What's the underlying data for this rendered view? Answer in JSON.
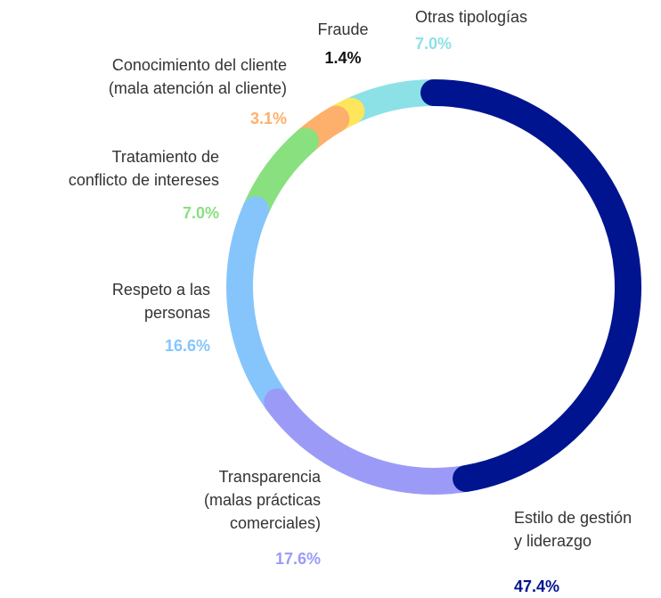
{
  "chart_data": {
    "type": "donut",
    "categories": [
      "Estilo de gestión\ny liderazgo",
      "Transparencia\n(malas prácticas\ncomerciales)",
      "Respeto a las\npersonas",
      "Tratamiento de\nconflicto de intereses",
      "Conocimiento del cliente\n(mala atención al cliente)",
      "Fraude",
      "Otras tipologías"
    ],
    "values": [
      47.4,
      17.6,
      16.6,
      7.0,
      3.1,
      1.4,
      7.0
    ],
    "value_labels": [
      "47.4%",
      "17.6%",
      "16.6%",
      "7.0%",
      "3.1%",
      "1.4%",
      "7.0%"
    ],
    "colors": [
      "#00148f",
      "#9b9bf7",
      "#86c5fb",
      "#89e07f",
      "#fdb06b",
      "#fde65c",
      "#8ce1e7"
    ],
    "value_label_colors": [
      "#00148f",
      "#9b9bf7",
      "#86c5fb",
      "#89e07f",
      "#fdb06b",
      "#111111",
      "#8ce1e7"
    ]
  }
}
